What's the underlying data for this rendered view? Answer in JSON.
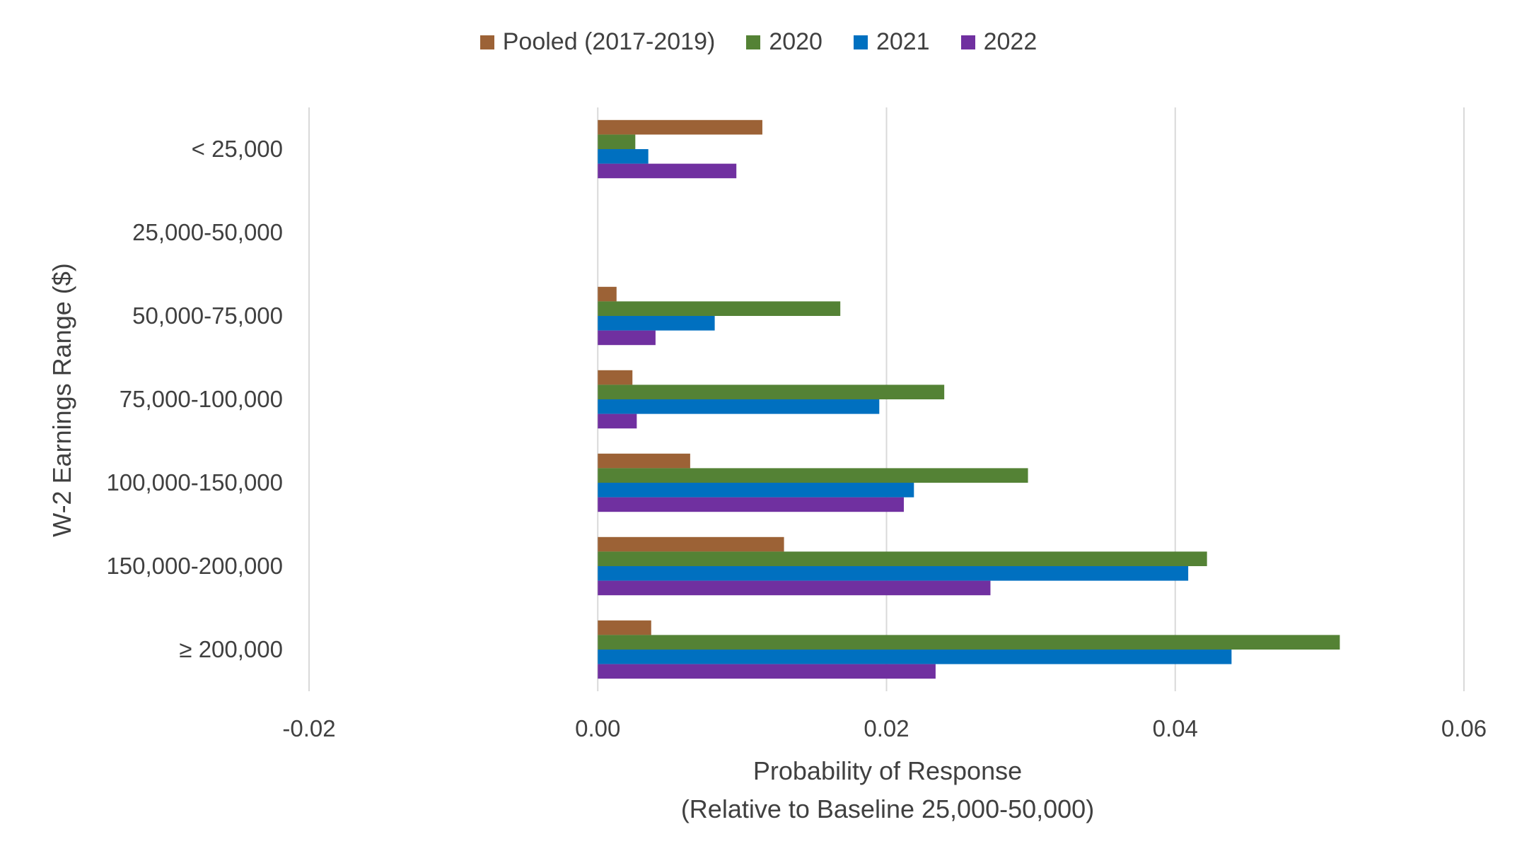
{
  "chart_data": {
    "type": "bar",
    "orientation": "horizontal",
    "title": "",
    "xlabel": "Probability of Response",
    "xlabel_sub": "(Relative to Baseline 25,000-50,000)",
    "ylabel": "W-2 Earnings Range ($)",
    "xlim": [
      -0.02,
      0.06
    ],
    "xticks": [
      "-0.02",
      "0.00",
      "0.02",
      "0.04",
      "0.06"
    ],
    "grid": "vertical",
    "legend_position": "top",
    "categories": [
      "< 25,000",
      "25,000-50,000",
      "50,000-75,000",
      "75,000-100,000",
      "100,000-150,000",
      "150,000-200,000",
      "≥ 200,000"
    ],
    "series": [
      {
        "name": "Pooled (2017-2019)",
        "color": "#9C6236",
        "values": [
          0.0114,
          0,
          0.0013,
          0.0024,
          0.0064,
          0.0129,
          0.0037
        ]
      },
      {
        "name": "2020",
        "color": "#548235",
        "values": [
          0.0026,
          0,
          0.0168,
          0.024,
          0.0298,
          0.0422,
          0.0514
        ]
      },
      {
        "name": "2021",
        "color": "#0070C0",
        "values": [
          0.0035,
          0,
          0.0081,
          0.0195,
          0.0219,
          0.0409,
          0.0439
        ]
      },
      {
        "name": "2022",
        "color": "#7030A0",
        "values": [
          0.0096,
          0,
          0.004,
          0.0027,
          0.0212,
          0.0272,
          0.0234
        ]
      }
    ]
  }
}
